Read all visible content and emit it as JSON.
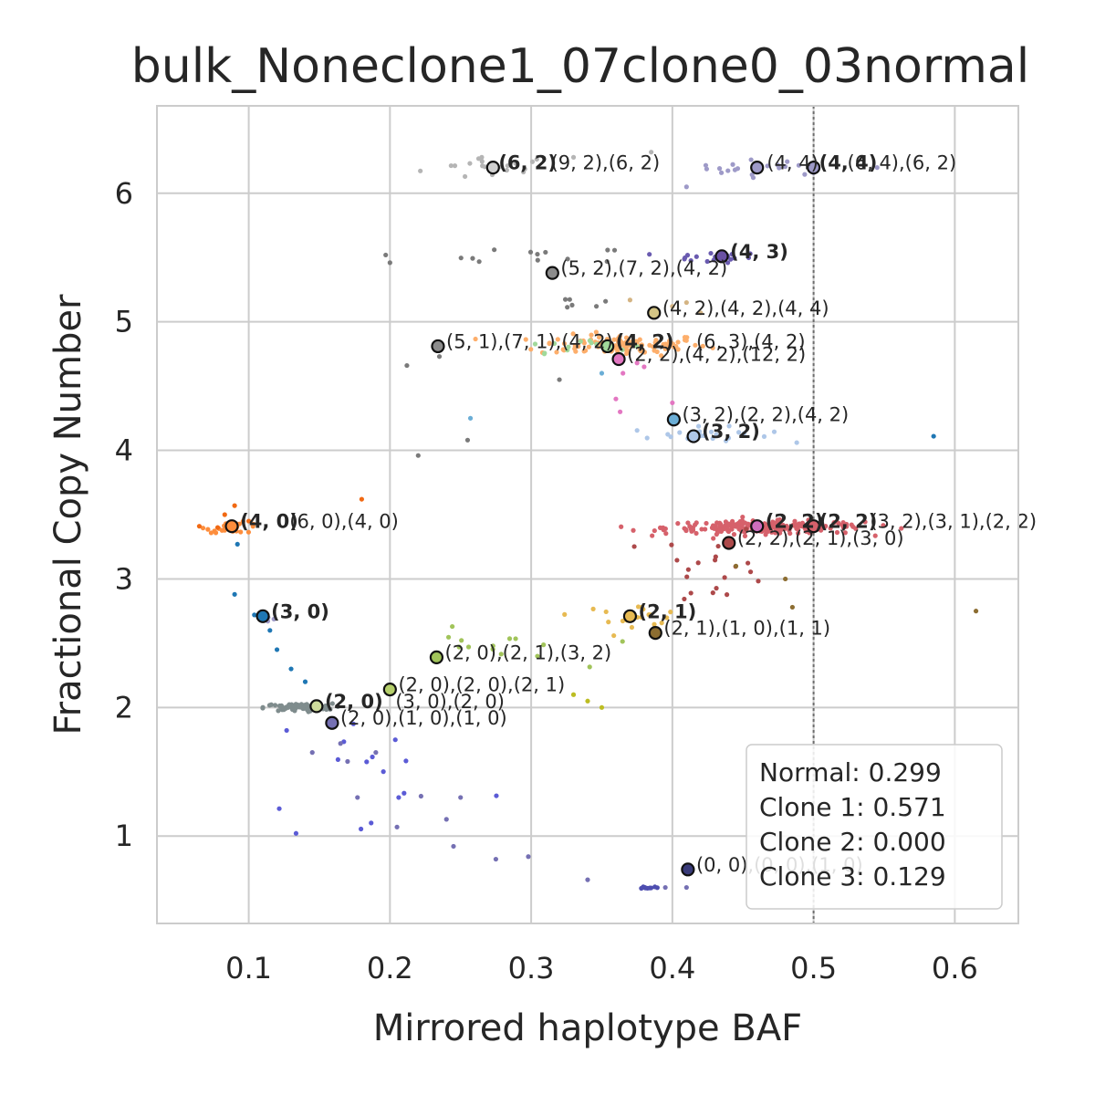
{
  "chart_data": {
    "type": "scatter",
    "title": "bulk_Noneclone1_07clone0_03normal",
    "xlabel": "Mirrored haplotype BAF",
    "ylabel": "Fractional Copy Number",
    "xlim": [
      0.035,
      0.645
    ],
    "ylim": [
      0.32,
      6.68
    ],
    "xticks": [
      "0.1",
      "0.2",
      "0.3",
      "0.4",
      "0.5",
      "0.6"
    ],
    "yticks": [
      "1",
      "2",
      "3",
      "4",
      "5",
      "6"
    ],
    "grid": true,
    "reference_line_x": 0.5,
    "legend_position": "bottom-right",
    "legend_entries": [
      "Normal: 0.299",
      "Clone 1: 0.571",
      "Clone 2: 0.000",
      "Clone 3: 0.129"
    ],
    "clusters": [
      {
        "color": "#b5b5b5",
        "center": [
          0.273,
          6.2
        ],
        "spread": [
          0.025,
          0.05
        ],
        "n": 18
      },
      {
        "color": "#9e9ac8",
        "center": [
          0.465,
          6.2
        ],
        "spread": [
          0.025,
          0.03
        ],
        "n": 18
      },
      {
        "color": "#7a7a7a",
        "center": [
          0.31,
          5.5
        ],
        "spread": [
          0.03,
          0.04
        ],
        "n": 12
      },
      {
        "color": "#6a5bb0",
        "center": [
          0.425,
          5.5
        ],
        "spread": [
          0.02,
          0.02
        ],
        "n": 18
      },
      {
        "color": "#7a7a7a",
        "center": [
          0.335,
          5.15
        ],
        "spread": [
          0.01,
          0.03
        ],
        "n": 6
      },
      {
        "color": "#fdae6b",
        "center": [
          0.365,
          4.82
        ],
        "spread": [
          0.03,
          0.04
        ],
        "n": 110
      },
      {
        "color": "#a1d99b",
        "center": [
          0.33,
          4.82
        ],
        "spread": [
          0.02,
          0.03
        ],
        "n": 12
      },
      {
        "color": "#aec7e8",
        "center": [
          0.42,
          4.12
        ],
        "spread": [
          0.025,
          0.03
        ],
        "n": 25
      },
      {
        "color": "#d6616b",
        "center": [
          0.465,
          3.4
        ],
        "spread": [
          0.035,
          0.025
        ],
        "n": 240
      },
      {
        "color": "#ad494a",
        "center": [
          0.43,
          3.1
        ],
        "spread": [
          0.02,
          0.15
        ],
        "n": 20
      },
      {
        "color": "#fd8d3c",
        "center": [
          0.09,
          3.4
        ],
        "spread": [
          0.01,
          0.02
        ],
        "n": 30
      },
      {
        "color": "#e7ba52",
        "center": [
          0.37,
          2.72
        ],
        "spread": [
          0.02,
          0.04
        ],
        "n": 20
      },
      {
        "color": "#a1c45a",
        "center": [
          0.27,
          2.45
        ],
        "spread": [
          0.03,
          0.08
        ],
        "n": 14
      },
      {
        "color": "#7f8c8d",
        "center": [
          0.135,
          2.0
        ],
        "spread": [
          0.012,
          0.015
        ],
        "n": 90
      },
      {
        "color": "#5b5bd6",
        "center": [
          0.19,
          1.5
        ],
        "spread": [
          0.04,
          0.3
        ],
        "n": 16
      },
      {
        "color": "#4e4eb0",
        "center": [
          0.383,
          0.6
        ],
        "spread": [
          0.004,
          0.005
        ],
        "n": 10
      },
      {
        "color": "#9e9ac8",
        "center": [
          0.115,
          2.7
        ],
        "spread": [
          0.008,
          0.01
        ],
        "n": 4
      }
    ],
    "scattered_points": [
      {
        "color": "#1f77b4",
        "points": [
          [
            0.11,
            2.7
          ],
          [
            0.104,
            2.72
          ],
          [
            0.115,
            2.6
          ],
          [
            0.12,
            2.45
          ],
          [
            0.13,
            2.3
          ],
          [
            0.14,
            2.2
          ],
          [
            0.09,
            2.88
          ],
          [
            0.092,
            3.27
          ],
          [
            0.585,
            4.11
          ]
        ]
      },
      {
        "color": "#7570b3",
        "points": [
          [
            0.165,
            1.72
          ],
          [
            0.17,
            1.58
          ],
          [
            0.177,
            1.3
          ],
          [
            0.19,
            1.65
          ],
          [
            0.205,
            1.07
          ],
          [
            0.222,
            1.31
          ],
          [
            0.24,
            1.13
          ],
          [
            0.245,
            0.92
          ],
          [
            0.25,
            1.3
          ],
          [
            0.275,
            0.82
          ],
          [
            0.298,
            0.84
          ],
          [
            0.34,
            0.66
          ],
          [
            0.395,
            0.6
          ],
          [
            0.41,
            0.6
          ],
          [
            0.145,
            1.65
          ]
        ]
      },
      {
        "color": "#e377c2",
        "points": [
          [
            0.36,
            4.4
          ],
          [
            0.363,
            4.3
          ],
          [
            0.365,
            4.6
          ],
          [
            0.375,
            4.68
          ],
          [
            0.38,
            4.65
          ],
          [
            0.4,
            4.37
          ]
        ]
      },
      {
        "color": "#8c6d31",
        "points": [
          [
            0.445,
            3.1
          ],
          [
            0.48,
            3.0
          ],
          [
            0.615,
            2.75
          ],
          [
            0.485,
            2.78
          ]
        ]
      },
      {
        "color": "#bcbd22",
        "points": [
          [
            0.33,
            2.1
          ],
          [
            0.34,
            2.05
          ],
          [
            0.35,
            2.0
          ]
        ]
      },
      {
        "color": "#7a7a7a",
        "points": [
          [
            0.2,
            5.46
          ],
          [
            0.197,
            5.52
          ],
          [
            0.22,
            3.96
          ],
          [
            0.212,
            4.66
          ],
          [
            0.235,
            4.73
          ],
          [
            0.255,
            4.08
          ],
          [
            0.32,
            4.55
          ]
        ]
      },
      {
        "color": "#d4b483",
        "points": [
          [
            0.37,
            5.17
          ],
          [
            0.4,
            5.12
          ],
          [
            0.42,
            5.07
          ],
          [
            0.41,
            5.15
          ]
        ]
      },
      {
        "color": "#6baed6",
        "points": [
          [
            0.257,
            4.25
          ],
          [
            0.35,
            4.6
          ]
        ]
      },
      {
        "color": "#f16913",
        "points": [
          [
            0.065,
            3.41
          ],
          [
            0.078,
            3.4
          ],
          [
            0.1,
            3.45
          ],
          [
            0.18,
            3.62
          ],
          [
            0.083,
            3.5
          ],
          [
            0.09,
            3.57
          ]
        ]
      },
      {
        "color": "#b5b5b5",
        "points": [
          [
            0.385,
            6.32
          ],
          [
            0.265,
            6.28
          ],
          [
            0.33,
            6.28
          ]
        ]
      },
      {
        "color": "#9e9ac8",
        "points": [
          [
            0.41,
            6.05
          ],
          [
            0.5,
            6.16
          ],
          [
            0.545,
            6.2
          ]
        ]
      }
    ],
    "centroids": [
      {
        "x": 0.273,
        "y": 6.2,
        "fill": "#cfcfcf"
      },
      {
        "x": 0.46,
        "y": 6.2,
        "fill": "#9e9ac8"
      },
      {
        "x": 0.5,
        "y": 6.2,
        "fill": "#9e9ac8"
      },
      {
        "x": 0.435,
        "y": 5.51,
        "fill": "#6a51a3"
      },
      {
        "x": 0.315,
        "y": 5.38,
        "fill": "#8c8c8c"
      },
      {
        "x": 0.387,
        "y": 5.07,
        "fill": "#d4c585"
      },
      {
        "x": 0.234,
        "y": 4.81,
        "fill": "#8c8c8c"
      },
      {
        "x": 0.354,
        "y": 4.81,
        "fill": "#a1d99b"
      },
      {
        "x": 0.362,
        "y": 4.71,
        "fill": "#e377c2"
      },
      {
        "x": 0.401,
        "y": 4.24,
        "fill": "#6baed6"
      },
      {
        "x": 0.415,
        "y": 4.11,
        "fill": "#aec7e8"
      },
      {
        "x": 0.46,
        "y": 3.41,
        "fill": "#ce6dbd"
      },
      {
        "x": 0.5,
        "y": 3.41,
        "fill": "#d6616b"
      },
      {
        "x": 0.44,
        "y": 3.28,
        "fill": "#ad494a"
      },
      {
        "x": 0.088,
        "y": 3.41,
        "fill": "#fd8d3c"
      },
      {
        "x": 0.11,
        "y": 2.71,
        "fill": "#1f77b4"
      },
      {
        "x": 0.37,
        "y": 2.71,
        "fill": "#e7ba52"
      },
      {
        "x": 0.388,
        "y": 2.58,
        "fill": "#8c6d31"
      },
      {
        "x": 0.233,
        "y": 2.39,
        "fill": "#a1c45a"
      },
      {
        "x": 0.2,
        "y": 2.14,
        "fill": "#b5cf6b"
      },
      {
        "x": 0.148,
        "y": 2.01,
        "fill": "#cedb9c"
      },
      {
        "x": 0.159,
        "y": 1.88,
        "fill": "#7570b3"
      },
      {
        "x": 0.411,
        "y": 0.74,
        "fill": "#393b79"
      }
    ],
    "annotations": [
      {
        "text": "(6, 2)",
        "x": 0.273,
        "y": 6.2,
        "bold": true
      },
      {
        "text": "(9, 2),(6, 2)",
        "x": 0.31,
        "y": 6.2,
        "bold": false
      },
      {
        "text": "(4, 4)",
        "x": 0.463,
        "y": 6.2,
        "bold": false
      },
      {
        "text": "(6, 4),(6, 2)",
        "x": 0.52,
        "y": 6.2,
        "bold": false
      },
      {
        "text": "(4, 4)",
        "x": 0.5,
        "y": 6.2,
        "bold": true
      },
      {
        "text": "(4, 3)",
        "x": 0.437,
        "y": 5.51,
        "bold": true
      },
      {
        "text": "(5, 2),(7, 2),(4, 2)",
        "x": 0.317,
        "y": 5.38,
        "bold": false
      },
      {
        "text": "(4, 2),(4, 2),(4, 4)",
        "x": 0.389,
        "y": 5.07,
        "bold": false
      },
      {
        "text": "(5, 1),(7, 1),(4, 2)",
        "x": 0.236,
        "y": 4.81,
        "bold": false
      },
      {
        "text": "(4, 2)",
        "x": 0.356,
        "y": 4.81,
        "bold": true
      },
      {
        "text": "(6, 3),(4, 2)",
        "x": 0.413,
        "y": 4.81,
        "bold": false
      },
      {
        "text": "(2, 2),(4, 2),(12, 2)",
        "x": 0.364,
        "y": 4.71,
        "bold": false
      },
      {
        "text": "(3, 2),(2, 2),(4, 2)",
        "x": 0.403,
        "y": 4.24,
        "bold": false
      },
      {
        "text": "(3, 2)",
        "x": 0.417,
        "y": 4.11,
        "bold": true
      },
      {
        "text": "(2, 2)",
        "x": 0.462,
        "y": 3.41,
        "bold": true
      },
      {
        "text": "(2, 2)",
        "x": 0.5,
        "y": 3.41,
        "bold": true
      },
      {
        "text": "(3, 2),(3, 1),(2, 2)",
        "x": 0.536,
        "y": 3.41,
        "bold": false
      },
      {
        "text": "(2, 2),(2, 1),(3, 0)",
        "x": 0.442,
        "y": 3.28,
        "bold": false
      },
      {
        "text": "(4, 0)",
        "x": 0.09,
        "y": 3.41,
        "bold": true
      },
      {
        "text": "(6, 0),(4, 0)",
        "x": 0.125,
        "y": 3.41,
        "bold": false
      },
      {
        "text": "(3, 0)",
        "x": 0.112,
        "y": 2.71,
        "bold": true
      },
      {
        "text": "(2, 1)",
        "x": 0.372,
        "y": 2.71,
        "bold": true
      },
      {
        "text": "(2, 1),(1, 0),(1, 1)",
        "x": 0.39,
        "y": 2.58,
        "bold": false
      },
      {
        "text": "(2, 0),(2, 1),(3, 2)",
        "x": 0.235,
        "y": 2.39,
        "bold": false
      },
      {
        "text": "(2, 0),(2, 0),(2, 1)",
        "x": 0.202,
        "y": 2.14,
        "bold": false
      },
      {
        "text": "(2, 0)",
        "x": 0.15,
        "y": 2.01,
        "bold": true
      },
      {
        "text": "(3, 0),(2, 0)",
        "x": 0.2,
        "y": 2.01,
        "bold": false
      },
      {
        "text": "(2, 0),(1, 0),(1, 0)",
        "x": 0.161,
        "y": 1.88,
        "bold": false
      },
      {
        "text": "(0, 0),(0, 0),(1, 0)",
        "x": 0.413,
        "y": 0.74,
        "bold": false
      }
    ]
  }
}
